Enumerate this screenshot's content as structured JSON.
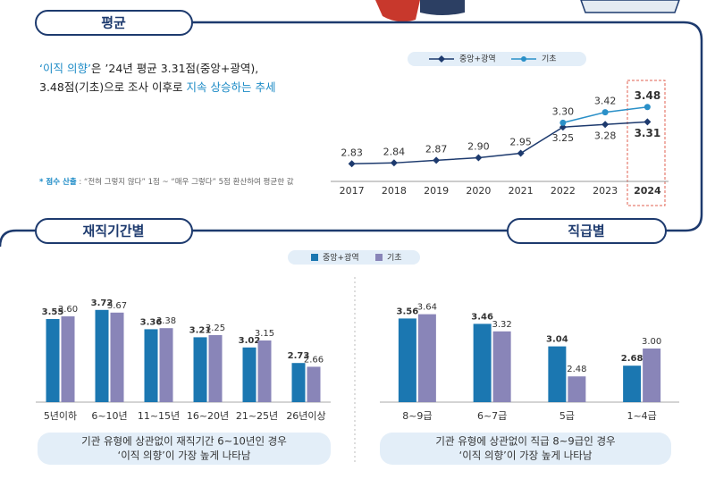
{
  "headings": [
    "평균",
    "재직기간별",
    "직급별"
  ],
  "summary": {
    "line1": [
      "‘이직 의향’",
      "은 ’24년 평균 3.31점(중앙+광역),"
    ],
    "line2": [
      "3.48점(기초)으로 조사 이후로 ",
      "지속 상승하는 추세"
    ]
  },
  "note": [
    "* 점수 산출",
    " : “전혀 그렇지 않다” 1점 ~ “매우 그렇다” 5점 환산하여 평균한 값"
  ],
  "captions": [
    [
      "기관 유형에 상관없이 재직기간 6~10년인 경우",
      "‘이직 의향’이 가장 높게 나타남"
    ],
    [
      "기관 유형에 상관없이 직급 8~9급인 경우",
      "‘이직 의향’이 가장 높게 나타남"
    ]
  ],
  "chart_data": [
    {
      "type": "line",
      "categories": [
        "2017",
        "2018",
        "2019",
        "2020",
        "2021",
        "2022",
        "2023",
        "2024"
      ],
      "ylim": [
        2.7,
        3.6
      ],
      "series": [
        {
          "name": "중앙+광역",
          "color": "#1d3a6e",
          "values": [
            2.83,
            2.84,
            2.87,
            2.9,
            2.95,
            3.25,
            3.28,
            3.31
          ],
          "value_labels": [
            "2.83",
            "2.84",
            "2.87",
            "2.90",
            "2.95",
            "3.25",
            "3.28",
            "3.31"
          ]
        },
        {
          "name": "기초",
          "color": "#2a90c8",
          "values": [
            null,
            null,
            null,
            null,
            null,
            3.3,
            3.42,
            3.48
          ],
          "value_labels": [
            null,
            null,
            null,
            null,
            null,
            "3.30",
            "3.42",
            "3.48"
          ]
        }
      ]
    },
    {
      "type": "bar",
      "categories": [
        "5년이하",
        "6~10년",
        "11~15년",
        "16~20년",
        "21~25년",
        "26년이상"
      ],
      "ylim": [
        2,
        4
      ],
      "series": [
        {
          "name": "중앙+광역",
          "color": "#1b77b1",
          "values": [
            3.55,
            3.72,
            3.36,
            3.21,
            3.02,
            2.73
          ]
        },
        {
          "name": "기초",
          "color": "#8985b8",
          "values": [
            3.6,
            3.67,
            3.38,
            3.25,
            3.15,
            2.66
          ],
          "value_labels": [
            "3.60",
            "3.67",
            "3.38",
            "3.25",
            "3.15",
            "2.66"
          ]
        }
      ]
    },
    {
      "type": "bar",
      "categories": [
        "8~9급",
        "6~7급",
        "5급",
        "1~4급"
      ],
      "ylim": [
        2,
        4
      ],
      "series": [
        {
          "name": "중앙+광역",
          "color": "#1b77b1",
          "values": [
            3.56,
            3.46,
            3.04,
            2.68
          ]
        },
        {
          "name": "기초",
          "color": "#8985b8",
          "values": [
            3.64,
            3.32,
            2.48,
            3.0
          ],
          "value_labels": [
            "3.64",
            "3.32",
            "2.48",
            "3.00"
          ]
        }
      ]
    }
  ]
}
